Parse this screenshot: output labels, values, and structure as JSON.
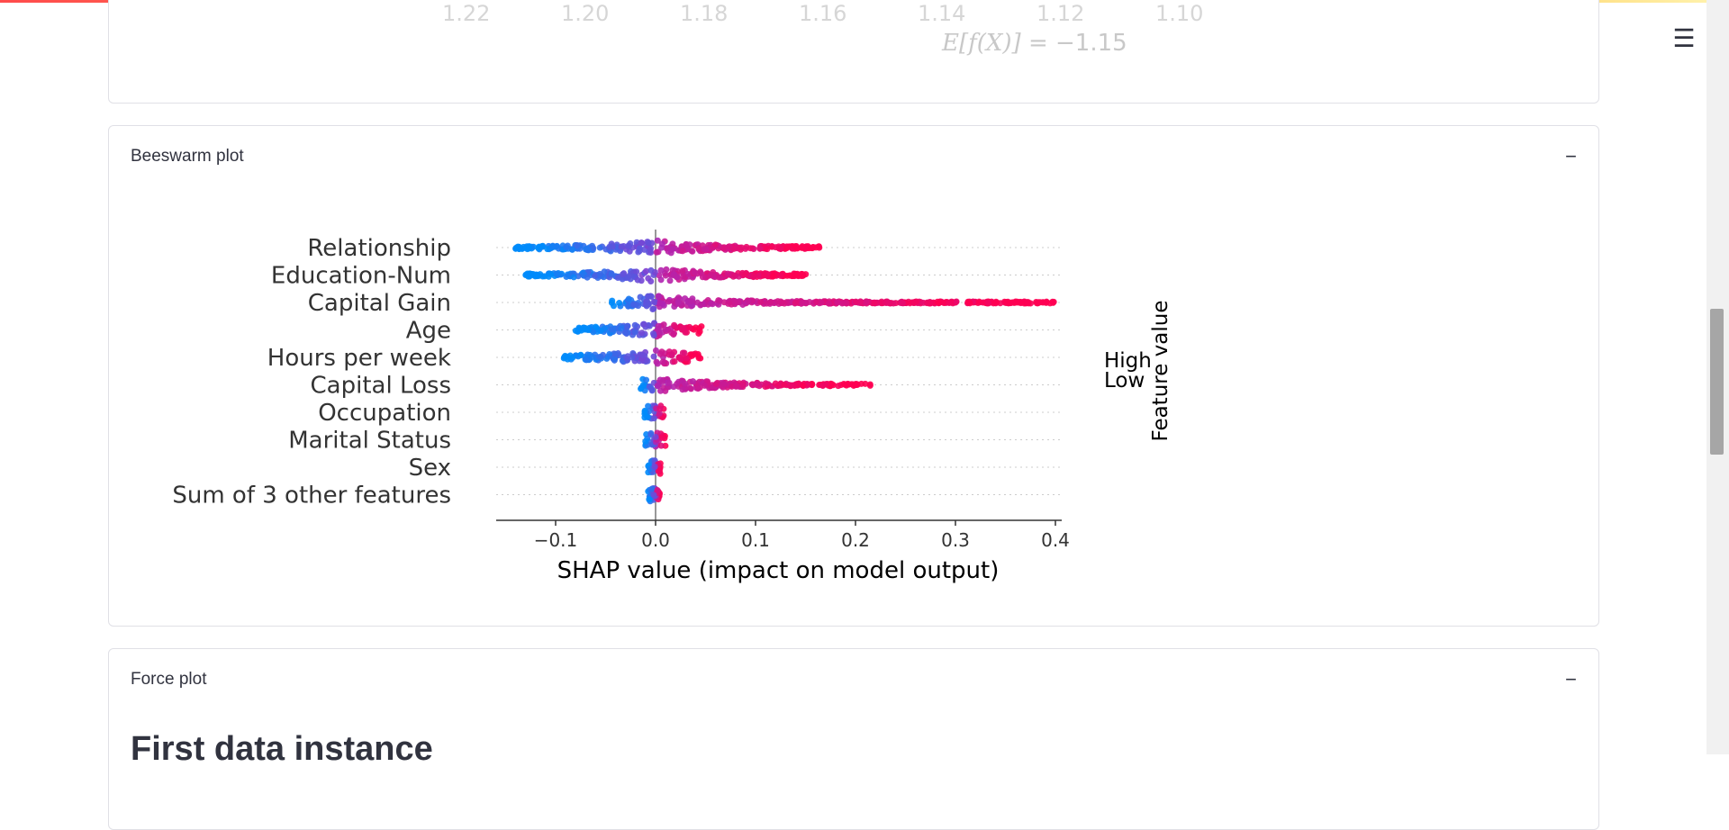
{
  "previous_plot": {
    "axis_ticks": [
      "1.22",
      "1.20",
      "1.18",
      "1.16",
      "1.14",
      "1.12",
      "1.10"
    ],
    "expected_value_prefix": "E[f(X)]",
    "expected_value_suffix": "= −1.15"
  },
  "beeswarm": {
    "title": "Beeswarm plot",
    "collapse_icon": "−"
  },
  "force": {
    "title": "Force plot",
    "collapse_icon": "−",
    "section_heading": "First data instance"
  },
  "menu": {
    "icon": "hamburger-menu-icon",
    "glyph": "☰"
  },
  "colors": {
    "high": "#ff0052",
    "low": "#008bfb",
    "mid": "#9e2ec7",
    "accent_bar_start": "#ff4b4b",
    "accent_bar_end": "#fff4b0"
  },
  "chart_data": {
    "type": "scatter",
    "subtype": "shap-beeswarm",
    "features": [
      "Relationship",
      "Education-Num",
      "Capital Gain",
      "Age",
      "Hours per week",
      "Capital Loss",
      "Occupation",
      "Marital Status",
      "Sex",
      "Sum of 3 other features"
    ],
    "spread": [
      {
        "feature": "Relationship",
        "min": -0.14,
        "max": 0.165
      },
      {
        "feature": "Education-Num",
        "min": -0.13,
        "max": 0.152
      },
      {
        "feature": "Capital Gain",
        "min": -0.045,
        "max": 0.4
      },
      {
        "feature": "Age",
        "min": -0.08,
        "max": 0.047
      },
      {
        "feature": "Hours per week",
        "min": -0.095,
        "max": 0.045
      },
      {
        "feature": "Capital Loss",
        "min": -0.015,
        "max": 0.215
      },
      {
        "feature": "Occupation",
        "min": -0.012,
        "max": 0.01
      },
      {
        "feature": "Marital Status",
        "min": -0.012,
        "max": 0.01
      },
      {
        "feature": "Sex",
        "min": -0.008,
        "max": 0.005
      },
      {
        "feature": "Sum of 3 other features",
        "min": -0.008,
        "max": 0.004
      }
    ],
    "xlim": [
      -0.17,
      0.43
    ],
    "xticks": [
      -0.1,
      0.0,
      0.1,
      0.2,
      0.3,
      0.4
    ],
    "xtick_labels": [
      "−0.1",
      "0.0",
      "0.1",
      "0.2",
      "0.3",
      "0.4"
    ],
    "xlabel": "SHAP value (impact on model output)",
    "colorbar": {
      "label": "Feature value",
      "high_label": "High",
      "low_label": "Low"
    }
  }
}
